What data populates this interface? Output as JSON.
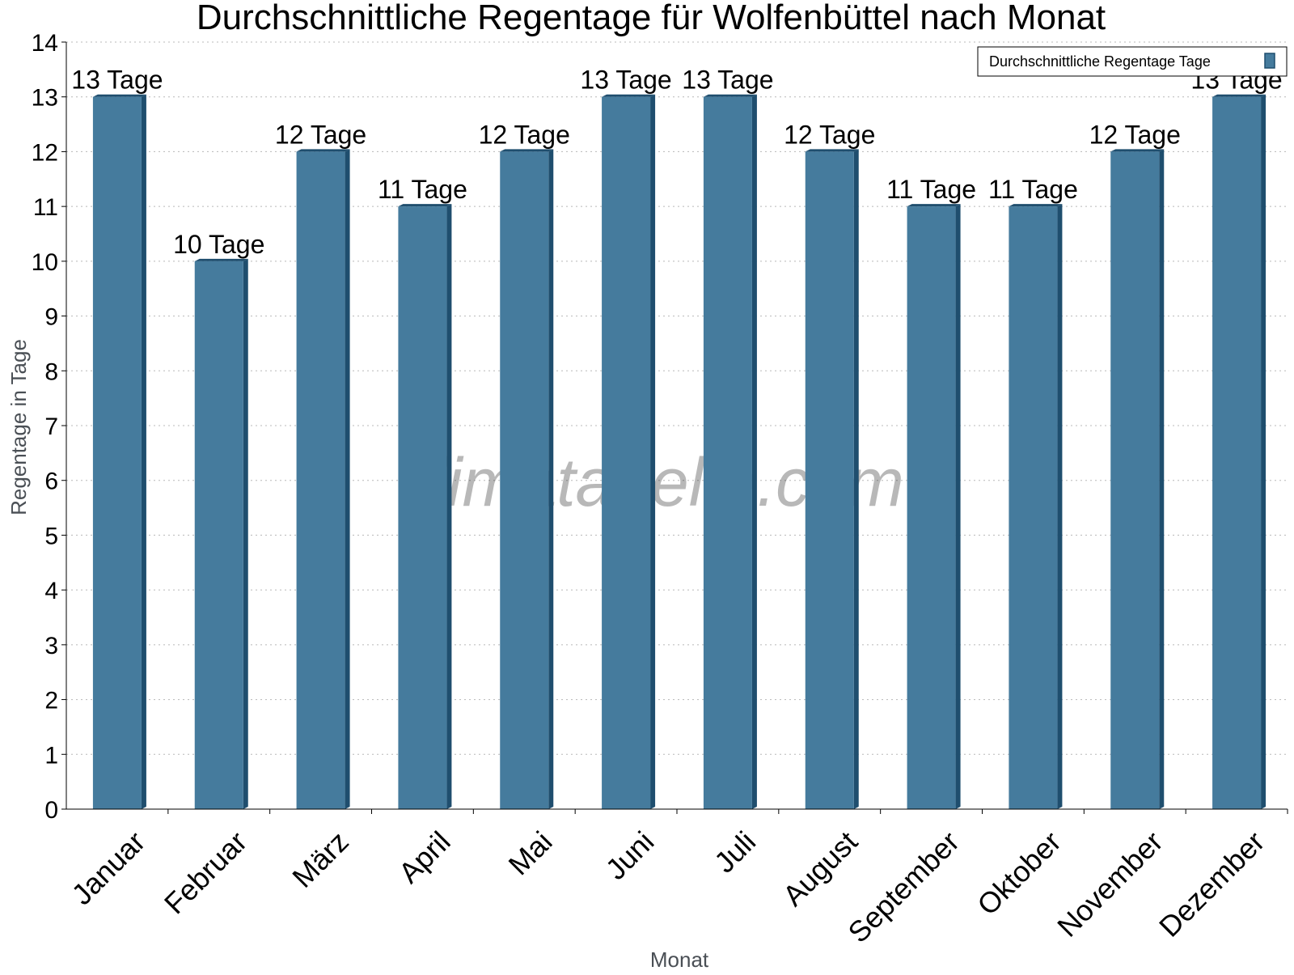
{
  "chart_data": {
    "type": "bar",
    "title": "Durchschnittliche Regentage für Wolfenbüttel nach Monat",
    "xlabel": "Monat",
    "ylabel": "Regentage in Tage",
    "categories": [
      "Januar",
      "Februar",
      "März",
      "April",
      "Mai",
      "Juni",
      "Juli",
      "August",
      "September",
      "Oktober",
      "November",
      "Dezember"
    ],
    "series": [
      {
        "name": "Durchschnittliche Regentage Tage",
        "values": [
          13,
          10,
          12,
          11,
          12,
          13,
          13,
          12,
          11,
          11,
          12,
          13
        ],
        "labels": [
          "13 Tage",
          "10 Tage",
          "12 Tage",
          "11 Tage",
          "12 Tage",
          "13 Tage",
          "13 Tage",
          "12 Tage",
          "11 Tage",
          "11 Tage",
          "12 Tage",
          "13 Tage"
        ],
        "color": "#457b9d",
        "side_color": "#1f4e6e"
      }
    ],
    "ylim": [
      0,
      14
    ],
    "yticks": [
      "0",
      "1",
      "2",
      "3",
      "4",
      "5",
      "6",
      "7",
      "8",
      "9",
      "10",
      "11",
      "12",
      "13",
      "14"
    ],
    "grid": true,
    "legend_position": "top-right"
  },
  "watermark": "klimatabelle.com"
}
